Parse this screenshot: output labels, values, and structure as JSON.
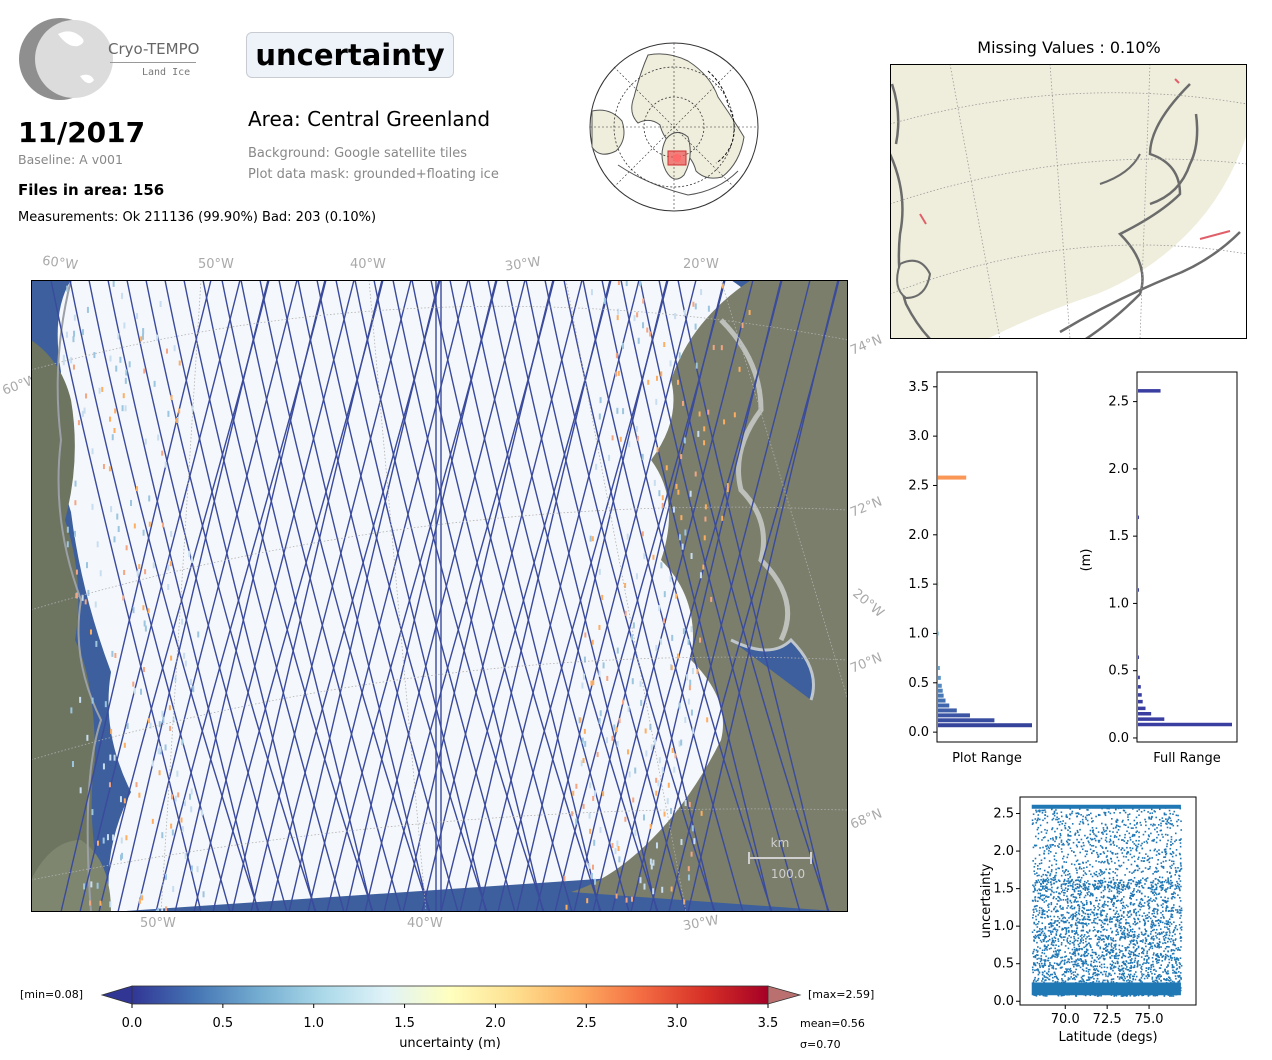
{
  "logo": {
    "name": "Cryo-TEMPO",
    "sub": "Land Ice"
  },
  "header": {
    "date": "11/2017",
    "baseline": "Baseline: A v001",
    "files": "Files in area: 156",
    "measurements": "Measurements: Ok 211136 (99.90%) Bad: 203 (0.10%)",
    "parameter": "uncertainty",
    "area": "Area: Central Greenland",
    "background_note": "Background: Google satellite tiles",
    "mask_note": "Plot data mask: grounded+floating ice"
  },
  "missing_map": {
    "title": "Missing Values : 0.10%",
    "land_color": "#efeedc",
    "coast_color": "#6b6b6b",
    "missing_color": "#e0606a"
  },
  "main_map": {
    "top_lon_labels": [
      "60°W",
      "50°W",
      "40°W",
      "30°W",
      "20°W"
    ],
    "bottom_lon_labels": [
      "50°W",
      "40°W",
      "30°W"
    ],
    "left_lat_labels": [
      "60°W"
    ],
    "right_lat_labels": [
      "74°N",
      "72°N",
      "20°W",
      "70°N",
      "68°N"
    ],
    "scalebar_unit": "km",
    "scalebar_value": "100.0",
    "colors": {
      "ocean": "#3d5f9e",
      "ice": "#f4f7fb",
      "track": "#3a4a9c",
      "rock": "#6d7460"
    }
  },
  "colorbar": {
    "label": "uncertainty (m)",
    "ticks": [
      "0.0",
      "0.5",
      "1.0",
      "1.5",
      "2.0",
      "2.5",
      "3.0",
      "3.5"
    ],
    "min_label": "[min=0.08]",
    "max_label": "[max=2.59]",
    "mean_label": "mean=0.56",
    "sigma_label": "σ=0.70",
    "range": [
      0,
      3.5
    ],
    "colormap": [
      "#313695",
      "#4575b4",
      "#74add1",
      "#abd9e9",
      "#e0f3f8",
      "#ffffbf",
      "#fee090",
      "#fdae61",
      "#f46d43",
      "#d73027",
      "#a50026"
    ]
  },
  "chart_data": [
    {
      "type": "bar",
      "orientation": "horizontal",
      "xlabel": "Plot Range",
      "ylabel": "",
      "ylim": [
        -0.1,
        3.65
      ],
      "yticks": [
        "0.0",
        "0.5",
        "1.0",
        "1.5",
        "2.0",
        "2.5",
        "3.0",
        "3.5"
      ],
      "bins": [
        {
          "y": 0.07,
          "count": 100
        },
        {
          "y": 0.12,
          "count": 60
        },
        {
          "y": 0.17,
          "count": 34
        },
        {
          "y": 0.22,
          "count": 20
        },
        {
          "y": 0.27,
          "count": 12
        },
        {
          "y": 0.32,
          "count": 8
        },
        {
          "y": 0.37,
          "count": 6
        },
        {
          "y": 0.42,
          "count": 5
        },
        {
          "y": 0.47,
          "count": 4
        },
        {
          "y": 0.55,
          "count": 3
        },
        {
          "y": 0.65,
          "count": 2
        },
        {
          "y": 1.0,
          "count": 1
        },
        {
          "y": 1.5,
          "count": 1
        },
        {
          "y": 2.58,
          "count": 30
        }
      ]
    },
    {
      "type": "bar",
      "orientation": "horizontal",
      "xlabel": "Full Range",
      "ylabel": "(m)",
      "ylim": [
        -0.03,
        2.72
      ],
      "yticks": [
        "0.0",
        "0.5",
        "1.0",
        "1.5",
        "2.0",
        "2.5"
      ],
      "bins": [
        {
          "y": 0.1,
          "count": 100
        },
        {
          "y": 0.14,
          "count": 28
        },
        {
          "y": 0.18,
          "count": 14
        },
        {
          "y": 0.22,
          "count": 8
        },
        {
          "y": 0.27,
          "count": 5
        },
        {
          "y": 0.32,
          "count": 4
        },
        {
          "y": 0.38,
          "count": 3
        },
        {
          "y": 0.45,
          "count": 2
        },
        {
          "y": 0.6,
          "count": 1
        },
        {
          "y": 1.1,
          "count": 1
        },
        {
          "y": 1.64,
          "count": 1
        },
        {
          "y": 2.58,
          "count": 24
        }
      ]
    },
    {
      "type": "scatter",
      "xlabel": "Latitude (degs)",
      "ylabel": "uncertainty",
      "xlim": [
        67.3,
        77.8
      ],
      "ylim": [
        -0.05,
        2.72
      ],
      "xticks": [
        "70.0",
        "72.5",
        "75.0"
      ],
      "yticks": [
        "0.0",
        "0.5",
        "1.0",
        "1.5",
        "2.0",
        "2.5"
      ],
      "x_range": [
        68.0,
        76.9
      ],
      "y_range": [
        0.08,
        2.59
      ],
      "point_count": 211136
    }
  ]
}
